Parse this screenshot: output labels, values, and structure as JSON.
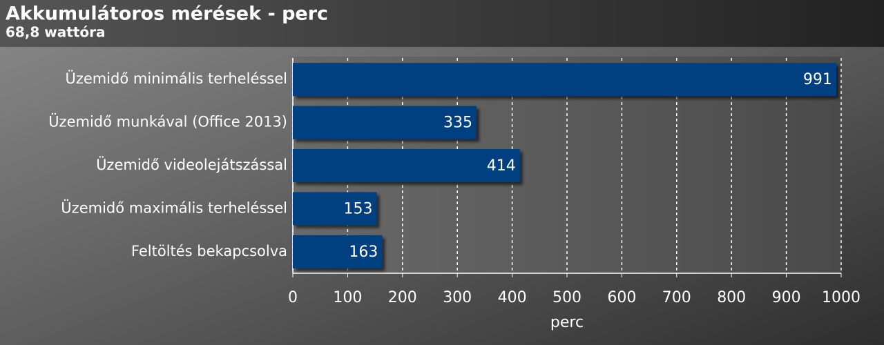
{
  "chart_data": {
    "type": "bar",
    "orientation": "horizontal",
    "title": "Akkumulátoros mérések - perc",
    "subtitle": "68,8 wattóra",
    "categories": [
      "Üzemidő minimális terheléssel",
      "Üzemidő munkával (Office 2013)",
      "Üzemidő videolejátszással",
      "Üzemidő maximális terheléssel",
      "Feltöltés bekapcsolva"
    ],
    "values": [
      991,
      335,
      414,
      153,
      163
    ],
    "color": "#003f80",
    "xlim": [
      0,
      1000
    ],
    "xticks": [
      0,
      100,
      200,
      300,
      400,
      500,
      600,
      700,
      800,
      900,
      1000
    ],
    "xlabel": "perc",
    "grid": true
  }
}
